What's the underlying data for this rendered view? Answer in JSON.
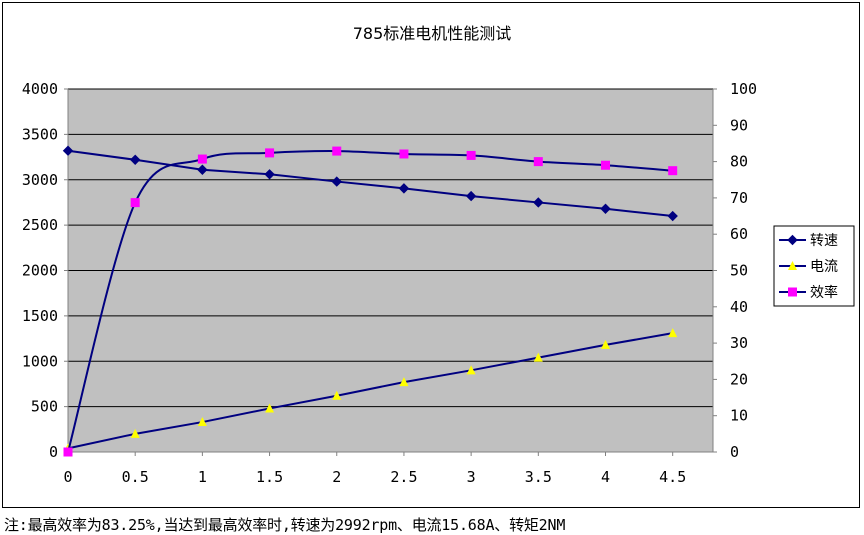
{
  "chart_data": {
    "type": "line",
    "title": "785标准电机性能测试",
    "categories": [
      "0",
      "0.5",
      "1",
      "1.5",
      "2",
      "2.5",
      "3",
      "3.5",
      "4",
      "4.5"
    ],
    "x": [
      0,
      0.5,
      1,
      1.5,
      2,
      2.5,
      3,
      3.5,
      4,
      4.5
    ],
    "xlim": [
      0,
      4.8
    ],
    "ylim": [
      0,
      4000
    ],
    "y_ticks": [
      0,
      500,
      1000,
      1500,
      2000,
      2500,
      3000,
      3500,
      4000
    ],
    "y2lim": [
      0,
      100
    ],
    "y2_ticks": [
      0,
      10,
      20,
      30,
      40,
      50,
      60,
      70,
      80,
      90,
      100
    ],
    "grid": "horizontal",
    "legend_position": "right",
    "plot_background": "#c0c0c0",
    "series": [
      {
        "name": "转速",
        "axis": "left",
        "marker": "diamond",
        "color": "#000080",
        "smooth": false,
        "values": [
          3320,
          3220,
          3110,
          3060,
          2980,
          2905,
          2820,
          2750,
          2680,
          2600
        ]
      },
      {
        "name": "电流",
        "axis": "left",
        "marker": "triangle",
        "color": "#000080",
        "marker_color": "#ffff00",
        "smooth": false,
        "values": [
          40,
          200,
          330,
          480,
          620,
          770,
          900,
          1040,
          1180,
          1310
        ]
      },
      {
        "name": "效率",
        "axis": "right",
        "marker": "square",
        "color": "#000080",
        "marker_color": "#ff00ff",
        "smooth": true,
        "values": [
          0,
          68.7,
          80.7,
          82.4,
          82.9,
          82.1,
          81.7,
          80.0,
          79.0,
          77.5
        ]
      }
    ]
  },
  "footnote": "注:最高效率为83.25%,当达到最高效率时,转速为2992rpm、电流15.68A、转矩2NM"
}
